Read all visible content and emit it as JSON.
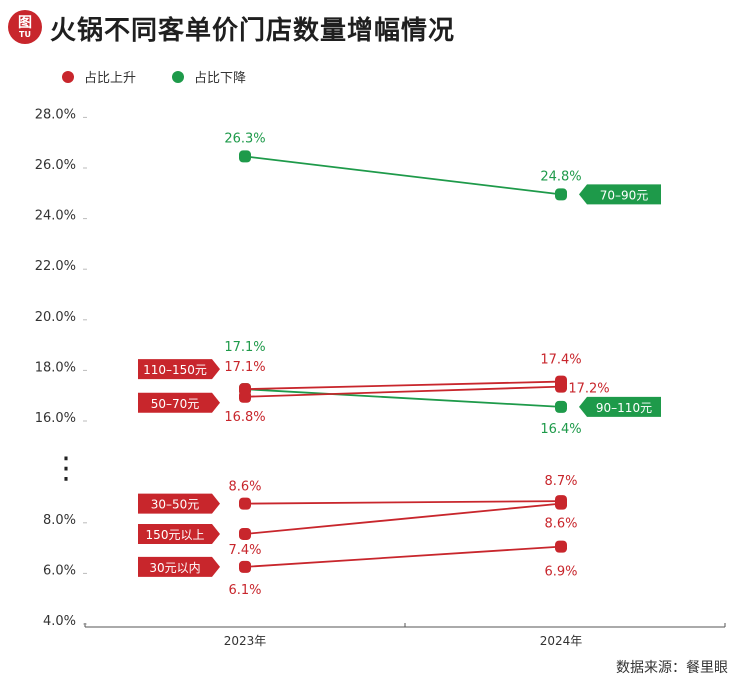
{
  "header": {
    "logo_text": "图",
    "logo_sub": "TU",
    "title": "火锅不同客单价门店数量增幅情况"
  },
  "legend": [
    {
      "label": "占比上升",
      "color": "#c8262c"
    },
    {
      "label": "占比下降",
      "color": "#1e9a4a"
    }
  ],
  "source": "数据来源：餐里眼",
  "chart_data": {
    "type": "line",
    "title": "火锅不同客单价门店数量增幅情况",
    "categories": [
      "2023年",
      "2024年"
    ],
    "y_ticks": [
      "4.0%",
      "6.0%",
      "8.0%",
      "16.0%",
      "18.0%",
      "20.0%",
      "22.0%",
      "24.0%",
      "26.0%",
      "28.0%"
    ],
    "axis_break": "⋮",
    "legend_position": "top-left",
    "grid": false,
    "series": [
      {
        "name": "70–90元",
        "trend": "down",
        "values": [
          26.3,
          24.8
        ],
        "labels": [
          "26.3%",
          "24.8%"
        ]
      },
      {
        "name": "90–110元",
        "trend": "down",
        "values": [
          17.1,
          16.4
        ],
        "labels": [
          "17.1%",
          "16.4%"
        ]
      },
      {
        "name": "110–150元",
        "trend": "up",
        "values": [
          17.1,
          17.4
        ],
        "labels": [
          "17.1%",
          "17.4%"
        ]
      },
      {
        "name": "50–70元",
        "trend": "up",
        "values": [
          16.8,
          17.2
        ],
        "labels": [
          "16.8%",
          "17.2%"
        ]
      },
      {
        "name": "30–50元",
        "trend": "up",
        "values": [
          8.6,
          8.7
        ],
        "labels": [
          "8.6%",
          "8.7%"
        ]
      },
      {
        "name": "150元以上",
        "trend": "up",
        "values": [
          7.4,
          8.6
        ],
        "labels": [
          "7.4%",
          "8.6%"
        ]
      },
      {
        "name": "30元以内",
        "trend": "up",
        "values": [
          6.1,
          6.9
        ],
        "labels": [
          "6.1%",
          "6.9%"
        ]
      }
    ]
  }
}
